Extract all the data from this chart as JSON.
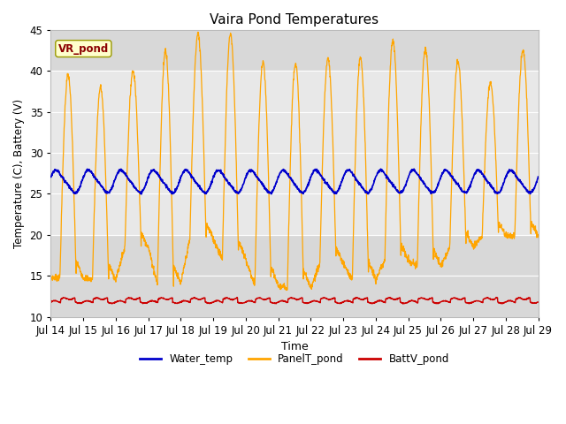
{
  "title": "Vaira Pond Temperatures",
  "xlabel": "Time",
  "ylabel": "Temperature (C), Battery (V)",
  "site_label": "VR_pond",
  "ylim": [
    10,
    45
  ],
  "xlim": [
    0,
    15
  ],
  "x_tick_labels": [
    "Jul 14",
    "Jul 15",
    "Jul 16",
    "Jul 17",
    "Jul 18",
    "Jul 19",
    "Jul 20",
    "Jul 21",
    "Jul 22",
    "Jul 23",
    "Jul 24",
    "Jul 25",
    "Jul 26",
    "Jul 27",
    "Jul 28",
    "Jul 29"
  ],
  "colors": {
    "water": "#0000cc",
    "panel": "#ffa500",
    "batt": "#cc0000",
    "bg_outer": "#d8d8d8",
    "bg_band": "#e8e8e8",
    "site_box_fill": "#ffffcc",
    "site_box_edge": "#999900"
  },
  "water_base": 26.5,
  "water_amp": 1.3,
  "panel_day_peak": 27.0,
  "panel_night_base": 14.5,
  "batt_base": 12.0,
  "n_days": 15,
  "pts_per_day": 144
}
